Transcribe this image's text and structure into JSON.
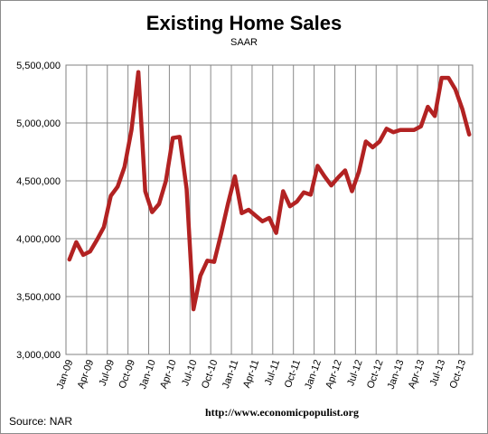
{
  "chart_data": {
    "type": "line",
    "title": "Existing Home Sales",
    "subtitle": "SAAR",
    "source": "Source:  NAR",
    "url": "http://www.economicpopulist.org",
    "ylim": [
      3000000,
      5500000
    ],
    "y_ticks": [
      "5,500,000",
      "5,000,000",
      "4,500,000",
      "4,000,000",
      "3,500,000",
      "3,000,000"
    ],
    "y_tick_values": [
      5500000,
      5000000,
      4500000,
      4000000,
      3500000,
      3000000
    ],
    "x_tick_labels": [
      "Jan-09",
      "Apr-09",
      "Jul-09",
      "Oct-09",
      "Jan-10",
      "Apr-10",
      "Jul-10",
      "Oct-10",
      "Jan-11",
      "Apr-11",
      "Jul-11",
      "Oct-11",
      "Jan-12",
      "Apr-12",
      "Jul-12",
      "Oct-12",
      "Jan-13",
      "Apr-13",
      "Jul-13",
      "Oct-13"
    ],
    "grid": true,
    "line_color": "#b22222",
    "x": [
      "Jan-09",
      "Feb-09",
      "Mar-09",
      "Apr-09",
      "May-09",
      "Jun-09",
      "Jul-09",
      "Aug-09",
      "Sep-09",
      "Oct-09",
      "Nov-09",
      "Dec-09",
      "Jan-10",
      "Feb-10",
      "Mar-10",
      "Apr-10",
      "May-10",
      "Jun-10",
      "Jul-10",
      "Aug-10",
      "Sep-10",
      "Oct-10",
      "Nov-10",
      "Dec-10",
      "Jan-11",
      "Feb-11",
      "Mar-11",
      "Apr-11",
      "May-11",
      "Jun-11",
      "Jul-11",
      "Aug-11",
      "Sep-11",
      "Oct-11",
      "Nov-11",
      "Dec-11",
      "Jan-12",
      "Feb-12",
      "Mar-12",
      "Apr-12",
      "May-12",
      "Jun-12",
      "Jul-12",
      "Aug-12",
      "Sep-12",
      "Oct-12",
      "Nov-12",
      "Dec-12",
      "Jan-13",
      "Feb-13",
      "Mar-13",
      "Apr-13",
      "May-13",
      "Jun-13",
      "Jul-13",
      "Aug-13",
      "Sep-13",
      "Oct-13",
      "Nov-13"
    ],
    "series": [
      {
        "values": [
          3820000,
          3970000,
          3860000,
          3890000,
          3990000,
          4100000,
          4370000,
          4450000,
          4620000,
          4940000,
          5440000,
          4410000,
          4230000,
          4300000,
          4500000,
          4870000,
          4880000,
          4430000,
          3390000,
          3680000,
          3810000,
          3800000,
          4040000,
          4300000,
          4540000,
          4220000,
          4250000,
          4200000,
          4150000,
          4180000,
          4050000,
          4410000,
          4280000,
          4320000,
          4400000,
          4380000,
          4630000,
          4540000,
          4460000,
          4530000,
          4590000,
          4410000,
          4580000,
          4840000,
          4790000,
          4840000,
          4950000,
          4920000,
          4940000,
          4940000,
          4940000,
          4970000,
          5140000,
          5060000,
          5390000,
          5390000,
          5290000,
          5120000,
          4900000
        ]
      }
    ]
  }
}
